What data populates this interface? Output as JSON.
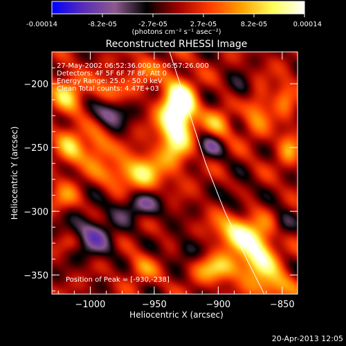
{
  "colors": {
    "background": "#000000",
    "foreground": "#ffffff",
    "colormap": [
      "#0000ff",
      "#5a2db8",
      "#8c5a8c",
      "#000000",
      "#a00000",
      "#ff3c00",
      "#ffa000",
      "#ffff5a",
      "#ffffff"
    ]
  },
  "colorbar": {
    "tick_labels": [
      "-0.00014",
      "-8.2e-05",
      "-2.7e-05",
      "2.7e-05",
      "8.2e-05",
      "0.00014"
    ],
    "unit_label": "(photons cm⁻² s⁻¹ asec⁻²)"
  },
  "chart_data": {
    "type": "heatmap",
    "title": "Reconstructed RHESSI Image",
    "xlabel": "Heliocentric X (arcsec)",
    "ylabel": "Heliocentric Y (arcsec)",
    "xlim": [
      -1030,
      -838
    ],
    "ylim": [
      -365,
      -175
    ],
    "x_ticks": [
      -1000,
      -950,
      -900,
      -850
    ],
    "x_tick_labels": [
      "−1000",
      "−950",
      "−900",
      "−850"
    ],
    "y_ticks": [
      -200,
      -250,
      -300,
      -350
    ],
    "y_tick_labels": [
      "−200",
      "−250",
      "−300",
      "−350"
    ],
    "value_range": [
      -0.00014,
      0.00014
    ],
    "annotations": [
      "27-May-2002 06:52:36.000 to 06:57:26.000",
      "Detectors: 4F 5F 6F 7F 8F, Att 0",
      "Energy Range: 25.0 - 50.0 keV",
      "Clean     Total counts: 4.47E+03"
    ],
    "peak_label": "Position of Peak = [-930,-238]",
    "peak_position": [
      -930,
      -238
    ],
    "limb_curve": [
      [
        -938,
        -175
      ],
      [
        -925,
        -215
      ],
      [
        -910,
        -262
      ],
      [
        -895,
        -300
      ],
      [
        -878,
        -337
      ],
      [
        -864,
        -365
      ]
    ],
    "blobs": [
      {
        "x": -934,
        "y": -232,
        "amp": 1.0,
        "sx": 9,
        "sy": 22
      },
      {
        "x": -928,
        "y": -216,
        "amp": 0.7,
        "sx": 8,
        "sy": 12
      },
      {
        "x": -958,
        "y": -270,
        "amp": 0.6,
        "sx": 10,
        "sy": 12
      },
      {
        "x": -885,
        "y": -316,
        "amp": 0.8,
        "sx": 12,
        "sy": 10
      },
      {
        "x": -868,
        "y": -335,
        "amp": 0.85,
        "sx": 10,
        "sy": 14
      },
      {
        "x": -900,
        "y": -345,
        "amp": 0.6,
        "sx": 14,
        "sy": 8
      },
      {
        "x": -855,
        "y": -360,
        "amp": 0.55,
        "sx": 10,
        "sy": 8
      },
      {
        "x": -1018,
        "y": -208,
        "amp": 0.55,
        "sx": 9,
        "sy": 12
      },
      {
        "x": -1015,
        "y": -250,
        "amp": 0.5,
        "sx": 8,
        "sy": 12
      },
      {
        "x": -995,
        "y": -250,
        "amp": 0.5,
        "sx": 8,
        "sy": 10
      },
      {
        "x": -1020,
        "y": -290,
        "amp": 0.35,
        "sx": 8,
        "sy": 8
      },
      {
        "x": -985,
        "y": -205,
        "amp": 0.45,
        "sx": 10,
        "sy": 8
      },
      {
        "x": -978,
        "y": -270,
        "amp": 0.45,
        "sx": 10,
        "sy": 8
      },
      {
        "x": -900,
        "y": -233,
        "amp": 0.5,
        "sx": 8,
        "sy": 10
      },
      {
        "x": -870,
        "y": -220,
        "amp": 0.45,
        "sx": 8,
        "sy": 14
      },
      {
        "x": -845,
        "y": -250,
        "amp": 0.45,
        "sx": 6,
        "sy": 10
      },
      {
        "x": -848,
        "y": -210,
        "amp": 0.4,
        "sx": 6,
        "sy": 10
      },
      {
        "x": -960,
        "y": -190,
        "amp": 0.35,
        "sx": 8,
        "sy": 8
      },
      {
        "x": -960,
        "y": -345,
        "amp": 0.35,
        "sx": 8,
        "sy": 8
      },
      {
        "x": -1015,
        "y": -325,
        "amp": 0.3,
        "sx": 8,
        "sy": 6
      },
      {
        "x": -1000,
        "y": -320,
        "amp": -0.55,
        "sx": 14,
        "sy": 12
      },
      {
        "x": -960,
        "y": -295,
        "amp": -0.5,
        "sx": 14,
        "sy": 8
      },
      {
        "x": -985,
        "y": -222,
        "amp": -0.55,
        "sx": 10,
        "sy": 8
      },
      {
        "x": -905,
        "y": -248,
        "amp": -0.45,
        "sx": 8,
        "sy": 8
      },
      {
        "x": -880,
        "y": -205,
        "amp": -0.35,
        "sx": 8,
        "sy": 8
      },
      {
        "x": -885,
        "y": -290,
        "amp": -0.3,
        "sx": 8,
        "sy": 8
      },
      {
        "x": -925,
        "y": -330,
        "amp": -0.35,
        "sx": 8,
        "sy": 8
      },
      {
        "x": -850,
        "y": -310,
        "amp": -0.3,
        "sx": 6,
        "sy": 8
      }
    ]
  },
  "footer": {
    "timestamp": "20-Apr-2013 12:05"
  }
}
